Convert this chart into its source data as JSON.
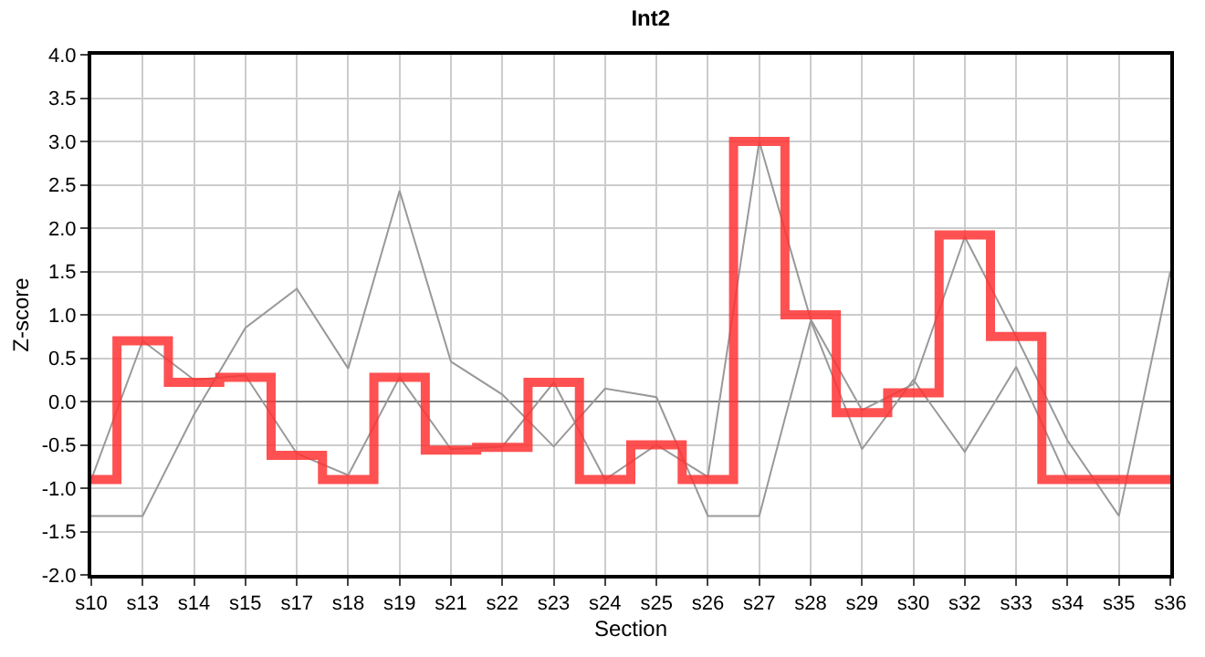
{
  "chart_data": {
    "type": "line",
    "title": "Int2",
    "xlabel": "Section",
    "ylabel": "Z-score",
    "categories": [
      "s10",
      "s13",
      "s14",
      "s15",
      "s17",
      "s18",
      "s19",
      "s21",
      "s22",
      "s23",
      "s24",
      "s25",
      "s26",
      "s27",
      "s28",
      "s29",
      "s30",
      "s32",
      "s33",
      "s34",
      "s35",
      "s36"
    ],
    "series": [
      {
        "color": "#999999",
        "values": [
          -1.32,
          -1.32,
          -0.15,
          0.85,
          1.3,
          0.38,
          2.43,
          0.46,
          0.08,
          -0.52,
          0.15,
          0.05,
          -1.32,
          -1.32,
          0.93,
          -0.55,
          0.25,
          -0.58,
          0.4,
          -0.9,
          -0.9,
          null
        ]
      },
      {
        "color": "#999999",
        "values": [
          -0.9,
          0.7,
          0.25,
          0.3,
          -0.6,
          -0.85,
          0.28,
          -0.55,
          -0.52,
          0.22,
          -0.9,
          -0.5,
          -0.87,
          3.0,
          0.95,
          -0.1,
          0.2,
          1.9,
          0.75,
          -0.45,
          -1.32,
          1.5
        ]
      },
      {
        "type": "step",
        "color": "#ff3333",
        "values": [
          -0.9,
          0.7,
          0.22,
          0.28,
          -0.62,
          -0.9,
          0.28,
          -0.56,
          -0.53,
          0.22,
          -0.9,
          -0.5,
          -0.9,
          3.0,
          1.0,
          -0.13,
          0.1,
          1.92,
          0.75,
          -0.9,
          -0.9,
          -0.9
        ]
      }
    ],
    "ylim": [
      -2,
      4
    ],
    "yticks": [
      {
        "value": -2,
        "label": "-2.0"
      },
      {
        "value": -1.5,
        "label": "-1.5"
      },
      {
        "value": -1,
        "label": "-1.0"
      },
      {
        "value": -0.5,
        "label": "-0.5"
      },
      {
        "value": 0,
        "label": "0.0"
      },
      {
        "value": 0.5,
        "label": "0.5"
      },
      {
        "value": 1,
        "label": "1.0"
      },
      {
        "value": 1.5,
        "label": "1.5"
      },
      {
        "value": 2,
        "label": "2.0"
      },
      {
        "value": 2.5,
        "label": "2.5"
      },
      {
        "value": 3,
        "label": "3.0"
      },
      {
        "value": 3.5,
        "label": "3.5"
      },
      {
        "value": 4,
        "label": "4.0"
      }
    ],
    "ref_lines": [
      {
        "axis": "y",
        "value": 0,
        "color": "#808080"
      }
    ],
    "grid": true
  }
}
